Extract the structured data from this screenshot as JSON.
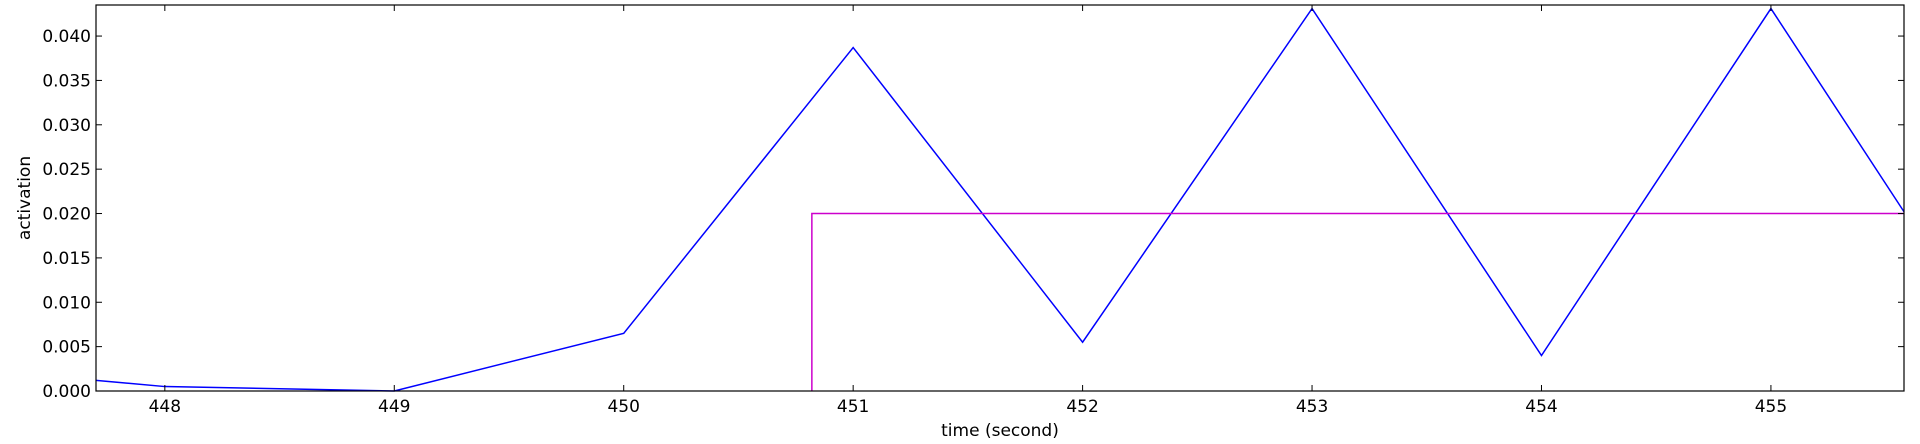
{
  "chart_data": {
    "type": "line",
    "title": "",
    "xlabel": "time (second)",
    "ylabel": "activation",
    "xlim": [
      447.7,
      455.58
    ],
    "ylim": [
      0.0,
      0.0435
    ],
    "x_ticks": [
      448,
      449,
      450,
      451,
      452,
      453,
      454,
      455
    ],
    "x_tick_labels": [
      "448",
      "449",
      "450",
      "451",
      "452",
      "453",
      "454",
      "455"
    ],
    "y_ticks": [
      0.0,
      0.005,
      0.01,
      0.015,
      0.02,
      0.025,
      0.03,
      0.035,
      0.04
    ],
    "y_tick_labels": [
      "0.000",
      "0.005",
      "0.010",
      "0.015",
      "0.020",
      "0.025",
      "0.030",
      "0.035",
      "0.040"
    ],
    "grid": false,
    "legend": "none",
    "series": [
      {
        "color": "#0000ff",
        "x": [
          447.7,
          448,
          449,
          450,
          451,
          452,
          453,
          454,
          455,
          455.58
        ],
        "y": [
          0.0012,
          0.0005,
          0.0,
          0.0065,
          0.0387,
          0.0055,
          0.0431,
          0.004,
          0.0431,
          0.0202
        ]
      },
      {
        "color": "#cc00cc",
        "x": [
          450.82,
          450.82,
          455.58
        ],
        "y": [
          0.0,
          0.02,
          0.02
        ]
      }
    ]
  }
}
